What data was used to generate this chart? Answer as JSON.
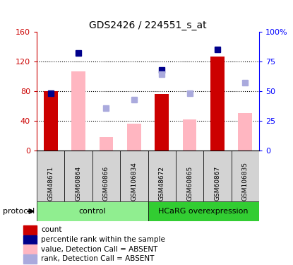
{
  "title": "GDS2426 / 224551_s_at",
  "samples": [
    "GSM48671",
    "GSM60864",
    "GSM60866",
    "GSM106834",
    "GSM48672",
    "GSM60865",
    "GSM60867",
    "GSM106835"
  ],
  "red_bars": [
    80,
    0,
    0,
    0,
    76,
    0,
    127,
    0
  ],
  "pink_bars": [
    0,
    107,
    18,
    36,
    0,
    42,
    0,
    50
  ],
  "blue_squares_pct": [
    48,
    82,
    0,
    0,
    68,
    0,
    85,
    0
  ],
  "light_blue_squares_pct": [
    0,
    0,
    36,
    43,
    64,
    48,
    0,
    57
  ],
  "ylim_left": [
    0,
    160
  ],
  "ylim_right": [
    0,
    100
  ],
  "yticks_left": [
    0,
    40,
    80,
    120,
    160
  ],
  "ytick_labels_left": [
    "0",
    "40",
    "80",
    "120",
    "160"
  ],
  "yticks_right": [
    0,
    25,
    50,
    75,
    100
  ],
  "ytick_labels_right": [
    "0",
    "25",
    "50",
    "75",
    "100%"
  ],
  "group_defs": [
    {
      "label": "control",
      "start": 0,
      "end": 3,
      "color": "#90EE90"
    },
    {
      "label": "HCaRG overexpression",
      "start": 4,
      "end": 7,
      "color": "#32CD32"
    }
  ],
  "protocol_label": "protocol",
  "legend_colors": [
    "#CC0000",
    "#00008B",
    "#FFB6C1",
    "#AAAADD"
  ],
  "legend_labels": [
    "count",
    "percentile rank within the sample",
    "value, Detection Call = ABSENT",
    "rank, Detection Call = ABSENT"
  ],
  "bar_width": 0.5,
  "left_yaxis_color": "#CC0000",
  "right_yaxis_color": "#0000FF",
  "sample_box_color": "#D3D3D3"
}
